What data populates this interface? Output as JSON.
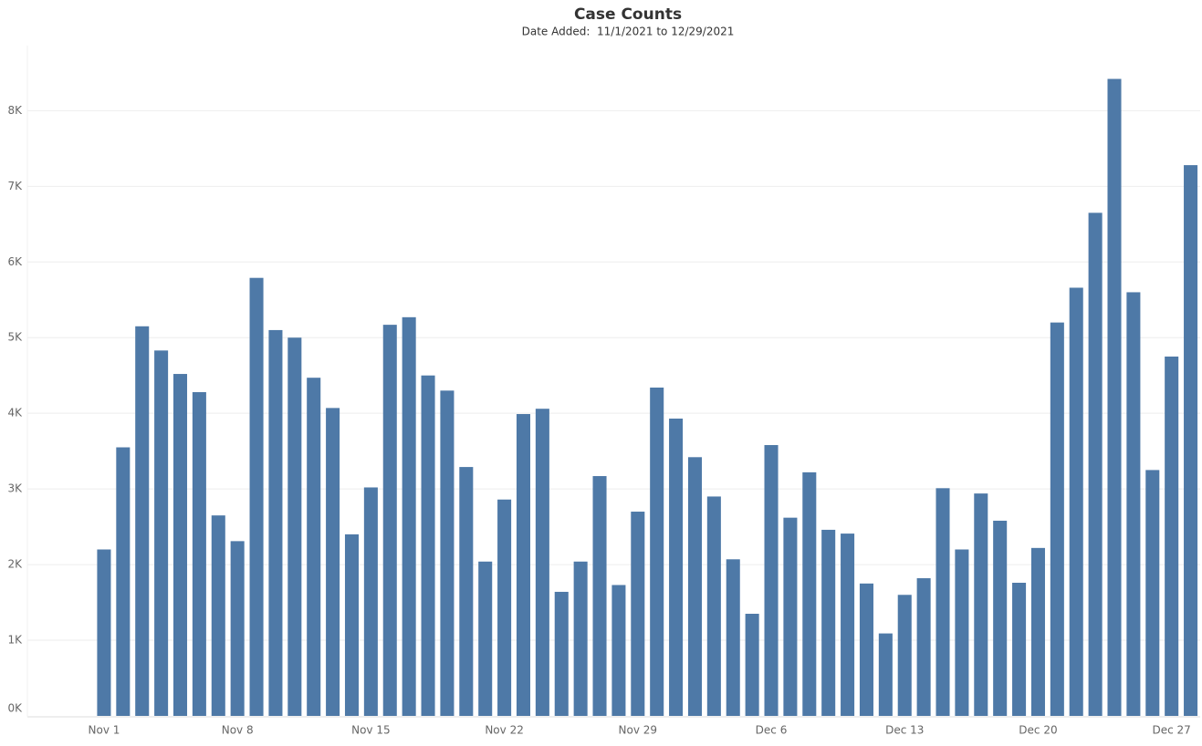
{
  "chart_data": {
    "type": "bar",
    "title": "Case Counts",
    "subtitle": "Date Added:  11/1/2021 to 12/29/2021",
    "categories": [
      "Nov 1",
      null,
      null,
      null,
      null,
      null,
      null,
      "Nov 8",
      null,
      null,
      null,
      null,
      null,
      null,
      "Nov 15",
      null,
      null,
      null,
      null,
      null,
      null,
      "Nov 22",
      null,
      null,
      null,
      null,
      null,
      null,
      "Nov 29",
      null,
      null,
      null,
      null,
      null,
      null,
      "Dec 6",
      null,
      null,
      null,
      null,
      null,
      null,
      "Dec 13",
      null,
      null,
      null,
      null,
      null,
      null,
      "Dec 20",
      null,
      null,
      null,
      null,
      null,
      null,
      "Dec 27",
      null
    ],
    "values": [
      2200,
      3550,
      5150,
      4830,
      4520,
      4280,
      2650,
      2310,
      5790,
      5100,
      5000,
      4470,
      4070,
      2400,
      3020,
      5170,
      5270,
      4500,
      4300,
      3290,
      2040,
      2860,
      3990,
      4060,
      1640,
      2040,
      3170,
      1730,
      2700,
      4340,
      3930,
      3420,
      2900,
      2070,
      1350,
      3580,
      2620,
      3220,
      2460,
      2410,
      1750,
      1090,
      1600,
      1820,
      3010,
      2200,
      2940,
      2580,
      1760,
      2220,
      5200,
      5660,
      6650,
      8420,
      5600,
      3250,
      4750,
      7280
    ],
    "color": "#4e79a7",
    "ylim": [
      0,
      8800
    ],
    "yticks": [
      {
        "value": 0,
        "label": "0K"
      },
      {
        "value": 1000,
        "label": "1K"
      },
      {
        "value": 2000,
        "label": "2K"
      },
      {
        "value": 3000,
        "label": "3K"
      },
      {
        "value": 4000,
        "label": "4K"
      },
      {
        "value": 5000,
        "label": "5K"
      },
      {
        "value": 6000,
        "label": "6K"
      },
      {
        "value": 7000,
        "label": "7K"
      },
      {
        "value": 8000,
        "label": "8K"
      }
    ],
    "grid": true
  }
}
